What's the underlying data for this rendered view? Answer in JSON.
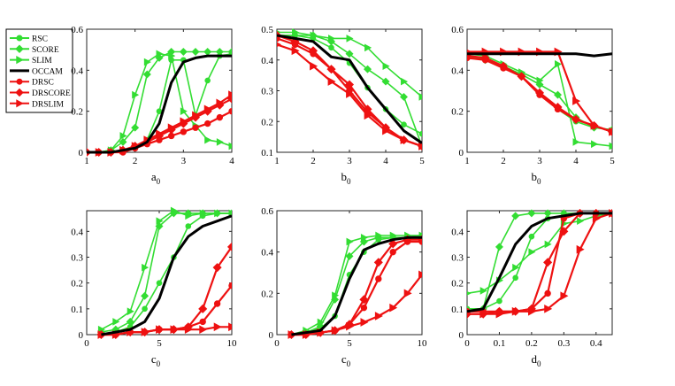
{
  "legend": {
    "entries": [
      {
        "name": "RSC",
        "color": "#33dd33",
        "marker": "circle"
      },
      {
        "name": "SCORE",
        "color": "#33dd33",
        "marker": "diamond"
      },
      {
        "name": "SLIM",
        "color": "#33dd33",
        "marker": "triangle-right"
      },
      {
        "name": "OCCAM",
        "color": "#000000",
        "marker": "none"
      },
      {
        "name": "DRSC",
        "color": "#ee1111",
        "marker": "circle"
      },
      {
        "name": "DRSCORE",
        "color": "#ee1111",
        "marker": "diamond"
      },
      {
        "name": "DRSLIM",
        "color": "#ee1111",
        "marker": "triangle-right"
      }
    ]
  },
  "chart_data": [
    {
      "type": "line",
      "xlabel": "a",
      "xlabel_sub": "0",
      "xlim": [
        1,
        4
      ],
      "ylim": [
        0,
        0.6
      ],
      "xticks": [
        1,
        2,
        3,
        4
      ],
      "yticks": [
        0,
        0.2,
        0.4,
        0.6
      ],
      "xtick_labels": [
        "1",
        "2",
        "3",
        "4"
      ],
      "ytick_labels": [
        "0",
        "0.2",
        "0.4",
        "0.6"
      ],
      "x": [
        1,
        1.25,
        1.5,
        1.75,
        2,
        2.25,
        2.5,
        2.75,
        3,
        3.25,
        3.5,
        3.75,
        4
      ],
      "series": [
        {
          "name": "RSC",
          "values": [
            0,
            0,
            0,
            0.01,
            0.03,
            0.06,
            0.2,
            0.45,
            0.45,
            0.18,
            0.35,
            0.47,
            0.48
          ]
        },
        {
          "name": "SCORE",
          "values": [
            0,
            0,
            0.01,
            0.05,
            0.12,
            0.38,
            0.46,
            0.49,
            0.49,
            0.49,
            0.49,
            0.49,
            0.49
          ]
        },
        {
          "name": "SLIM",
          "values": [
            0,
            0,
            0.01,
            0.08,
            0.28,
            0.44,
            0.48,
            0.47,
            0.2,
            0.13,
            0.06,
            0.05,
            0.03
          ]
        },
        {
          "name": "OCCAM",
          "values": [
            0,
            0,
            0,
            0.01,
            0.02,
            0.05,
            0.14,
            0.34,
            0.44,
            0.46,
            0.47,
            0.47,
            0.47
          ]
        },
        {
          "name": "DRSC",
          "values": [
            0,
            0,
            0,
            0,
            0.02,
            0.04,
            0.06,
            0.08,
            0.1,
            0.12,
            0.14,
            0.17,
            0.2
          ]
        },
        {
          "name": "DRSCORE",
          "values": [
            0,
            0,
            0,
            0.01,
            0.03,
            0.05,
            0.08,
            0.11,
            0.14,
            0.17,
            0.2,
            0.23,
            0.26
          ]
        },
        {
          "name": "DRSLIM",
          "values": [
            0,
            0,
            0,
            0.01,
            0.03,
            0.06,
            0.09,
            0.12,
            0.15,
            0.18,
            0.21,
            0.24,
            0.28
          ]
        }
      ]
    },
    {
      "type": "line",
      "xlabel": "b",
      "xlabel_sub": "0",
      "xlim": [
        1,
        5
      ],
      "ylim": [
        0.1,
        0.5
      ],
      "xticks": [
        1,
        2,
        3,
        4,
        5
      ],
      "yticks": [
        0.1,
        0.2,
        0.3,
        0.4,
        0.5
      ],
      "xtick_labels": [
        "1",
        "2",
        "3",
        "4",
        "5"
      ],
      "ytick_labels": [
        "0.1",
        "0.2",
        "0.3",
        "0.4",
        "0.5"
      ],
      "x": [
        1,
        1.5,
        2,
        2.5,
        3,
        3.5,
        4,
        4.5,
        5
      ],
      "series": [
        {
          "name": "RSC",
          "values": [
            0.48,
            0.48,
            0.47,
            0.44,
            0.39,
            0.31,
            0.24,
            0.19,
            0.16
          ]
        },
        {
          "name": "SCORE",
          "values": [
            0.48,
            0.48,
            0.48,
            0.46,
            0.42,
            0.37,
            0.33,
            0.28,
            0.12
          ]
        },
        {
          "name": "SLIM",
          "values": [
            0.49,
            0.49,
            0.48,
            0.47,
            0.47,
            0.44,
            0.38,
            0.33,
            0.28
          ]
        },
        {
          "name": "OCCAM",
          "values": [
            0.48,
            0.47,
            0.46,
            0.41,
            0.4,
            0.31,
            0.24,
            0.17,
            0.13
          ]
        },
        {
          "name": "DRSC",
          "values": [
            0.47,
            0.45,
            0.42,
            0.37,
            0.3,
            0.23,
            0.18,
            0.14,
            0.12
          ]
        },
        {
          "name": "DRSCORE",
          "values": [
            0.48,
            0.46,
            0.43,
            0.37,
            0.32,
            0.24,
            0.18,
            0.14,
            0.12
          ]
        },
        {
          "name": "DRSLIM",
          "values": [
            0.45,
            0.43,
            0.38,
            0.33,
            0.29,
            0.22,
            0.17,
            0.14,
            0.12
          ]
        }
      ]
    },
    {
      "type": "line",
      "xlabel": "b",
      "xlabel_sub": "0",
      "xlim": [
        1,
        5
      ],
      "ylim": [
        0,
        0.6
      ],
      "xticks": [
        1,
        2,
        3,
        4,
        5
      ],
      "yticks": [
        0,
        0.2,
        0.4,
        0.6
      ],
      "xtick_labels": [
        "1",
        "2",
        "3",
        "4",
        "5"
      ],
      "ytick_labels": [
        "0",
        "0.2",
        "0.4",
        "0.6"
      ],
      "x": [
        1,
        1.5,
        2,
        2.5,
        3,
        3.5,
        4,
        4.5,
        5
      ],
      "series": [
        {
          "name": "RSC",
          "values": [
            0.47,
            0.45,
            0.41,
            0.37,
            0.28,
            0.21,
            0.15,
            0.12,
            0.11
          ]
        },
        {
          "name": "SCORE",
          "values": [
            0.47,
            0.45,
            0.42,
            0.38,
            0.33,
            0.28,
            0.17,
            0.12,
            0.11
          ]
        },
        {
          "name": "SLIM",
          "values": [
            0.48,
            0.47,
            0.43,
            0.39,
            0.35,
            0.43,
            0.05,
            0.04,
            0.03
          ]
        },
        {
          "name": "OCCAM",
          "values": [
            0.48,
            0.48,
            0.48,
            0.48,
            0.48,
            0.48,
            0.48,
            0.47,
            0.48
          ]
        },
        {
          "name": "DRSC",
          "values": [
            0.46,
            0.45,
            0.41,
            0.37,
            0.28,
            0.21,
            0.16,
            0.13,
            0.1
          ]
        },
        {
          "name": "DRSCORE",
          "values": [
            0.47,
            0.46,
            0.42,
            0.37,
            0.29,
            0.22,
            0.16,
            0.13,
            0.1
          ]
        },
        {
          "name": "DRSLIM",
          "values": [
            0.49,
            0.49,
            0.49,
            0.49,
            0.49,
            0.49,
            0.25,
            0.13,
            0.1
          ]
        }
      ]
    },
    {
      "type": "line",
      "xlabel": "c",
      "xlabel_sub": "0",
      "xlim": [
        0,
        10
      ],
      "ylim": [
        0,
        0.48
      ],
      "xticks": [
        0,
        5,
        10
      ],
      "yticks": [
        0,
        0.1,
        0.2,
        0.3,
        0.4
      ],
      "xtick_labels": [
        "0",
        "5",
        "10"
      ],
      "ytick_labels": [
        "0",
        "0.1",
        "0.2",
        "0.3",
        "0.4"
      ],
      "x": [
        1,
        2,
        3,
        4,
        5,
        6,
        7,
        8,
        9,
        10
      ],
      "series": [
        {
          "name": "RSC",
          "values": [
            0,
            0.01,
            0.03,
            0.1,
            0.2,
            0.3,
            0.42,
            0.46,
            0.47,
            0.47
          ]
        },
        {
          "name": "SCORE",
          "values": [
            0.01,
            0.02,
            0.05,
            0.15,
            0.42,
            0.47,
            0.47,
            0.47,
            0.47,
            0.47
          ]
        },
        {
          "name": "SLIM",
          "values": [
            0.02,
            0.05,
            0.09,
            0.26,
            0.44,
            0.48,
            0.46,
            0.47,
            0.47,
            0.47
          ]
        },
        {
          "name": "OCCAM",
          "values": [
            0,
            0.01,
            0.02,
            0.05,
            0.14,
            0.3,
            0.38,
            0.42,
            0.44,
            0.46
          ]
        },
        {
          "name": "DRSC",
          "values": [
            0,
            0,
            0.01,
            0.01,
            0.02,
            0.02,
            0.03,
            0.05,
            0.12,
            0.19
          ]
        },
        {
          "name": "DRSCORE",
          "values": [
            0,
            0,
            0.01,
            0.01,
            0.02,
            0.02,
            0.03,
            0.1,
            0.26,
            0.34
          ]
        },
        {
          "name": "DRSLIM",
          "values": [
            0,
            0,
            0.01,
            0.01,
            0.02,
            0.02,
            0.02,
            0.02,
            0.03,
            0.03
          ]
        }
      ]
    },
    {
      "type": "line",
      "xlabel": "c",
      "xlabel_sub": "0",
      "xlim": [
        0,
        10
      ],
      "ylim": [
        0,
        0.6
      ],
      "xticks": [
        0,
        5,
        10
      ],
      "yticks": [
        0,
        0.2,
        0.4,
        0.6
      ],
      "xtick_labels": [
        "0",
        "5",
        "10"
      ],
      "ytick_labels": [
        "0",
        "0.2",
        "0.4",
        "0.6"
      ],
      "x": [
        1,
        2,
        3,
        4,
        5,
        6,
        7,
        8,
        9,
        10
      ],
      "series": [
        {
          "name": "RSC",
          "values": [
            0,
            0.01,
            0.03,
            0.09,
            0.29,
            0.4,
            0.46,
            0.47,
            0.47,
            0.48
          ]
        },
        {
          "name": "SCORE",
          "values": [
            0,
            0.01,
            0.04,
            0.17,
            0.38,
            0.45,
            0.47,
            0.47,
            0.47,
            0.47
          ]
        },
        {
          "name": "SLIM",
          "values": [
            0,
            0.02,
            0.06,
            0.19,
            0.45,
            0.47,
            0.48,
            0.48,
            0.48,
            0.48
          ]
        },
        {
          "name": "OCCAM",
          "values": [
            0,
            0.01,
            0.02,
            0.09,
            0.27,
            0.41,
            0.44,
            0.46,
            0.47,
            0.47
          ]
        },
        {
          "name": "DRSC",
          "values": [
            0,
            0,
            0.01,
            0.02,
            0.05,
            0.13,
            0.27,
            0.4,
            0.45,
            0.45
          ]
        },
        {
          "name": "DRSCORE",
          "values": [
            0,
            0,
            0.01,
            0.02,
            0.05,
            0.17,
            0.35,
            0.44,
            0.46,
            0.46
          ]
        },
        {
          "name": "DRSLIM",
          "values": [
            0,
            0,
            0.01,
            0.02,
            0.04,
            0.06,
            0.09,
            0.13,
            0.2,
            0.29
          ]
        }
      ]
    },
    {
      "type": "line",
      "xlabel": "d",
      "xlabel_sub": "0",
      "xlim": [
        0,
        0.45
      ],
      "ylim": [
        0,
        0.48
      ],
      "xticks": [
        0,
        0.1,
        0.2,
        0.3,
        0.4
      ],
      "yticks": [
        0,
        0.1,
        0.2,
        0.3,
        0.4
      ],
      "xtick_labels": [
        "0",
        "0.1",
        "0.2",
        "0.3",
        "0.4"
      ],
      "ytick_labels": [
        "0",
        "0.1",
        "0.2",
        "0.3",
        "0.4"
      ],
      "x": [
        0,
        0.05,
        0.1,
        0.15,
        0.2,
        0.25,
        0.3,
        0.35,
        0.4,
        0.45
      ],
      "series": [
        {
          "name": "RSC",
          "values": [
            0.1,
            0.1,
            0.13,
            0.22,
            0.38,
            0.45,
            0.46,
            0.47,
            0.47,
            0.47
          ]
        },
        {
          "name": "SCORE",
          "values": [
            0.09,
            0.1,
            0.34,
            0.46,
            0.47,
            0.47,
            0.47,
            0.47,
            0.47,
            0.47
          ]
        },
        {
          "name": "SLIM",
          "values": [
            0.16,
            0.17,
            0.21,
            0.26,
            0.32,
            0.35,
            0.43,
            0.44,
            0.46,
            0.47
          ]
        },
        {
          "name": "OCCAM",
          "values": [
            0.09,
            0.1,
            0.22,
            0.35,
            0.42,
            0.45,
            0.46,
            0.47,
            0.47,
            0.47
          ]
        },
        {
          "name": "DRSC",
          "values": [
            0.09,
            0.09,
            0.09,
            0.09,
            0.1,
            0.16,
            0.45,
            0.47,
            0.47,
            0.47
          ]
        },
        {
          "name": "DRSCORE",
          "values": [
            0.08,
            0.08,
            0.09,
            0.09,
            0.1,
            0.28,
            0.4,
            0.47,
            0.47,
            0.47
          ]
        },
        {
          "name": "DRSLIM",
          "values": [
            0.08,
            0.08,
            0.08,
            0.09,
            0.09,
            0.1,
            0.15,
            0.33,
            0.45,
            0.47
          ]
        }
      ]
    }
  ]
}
